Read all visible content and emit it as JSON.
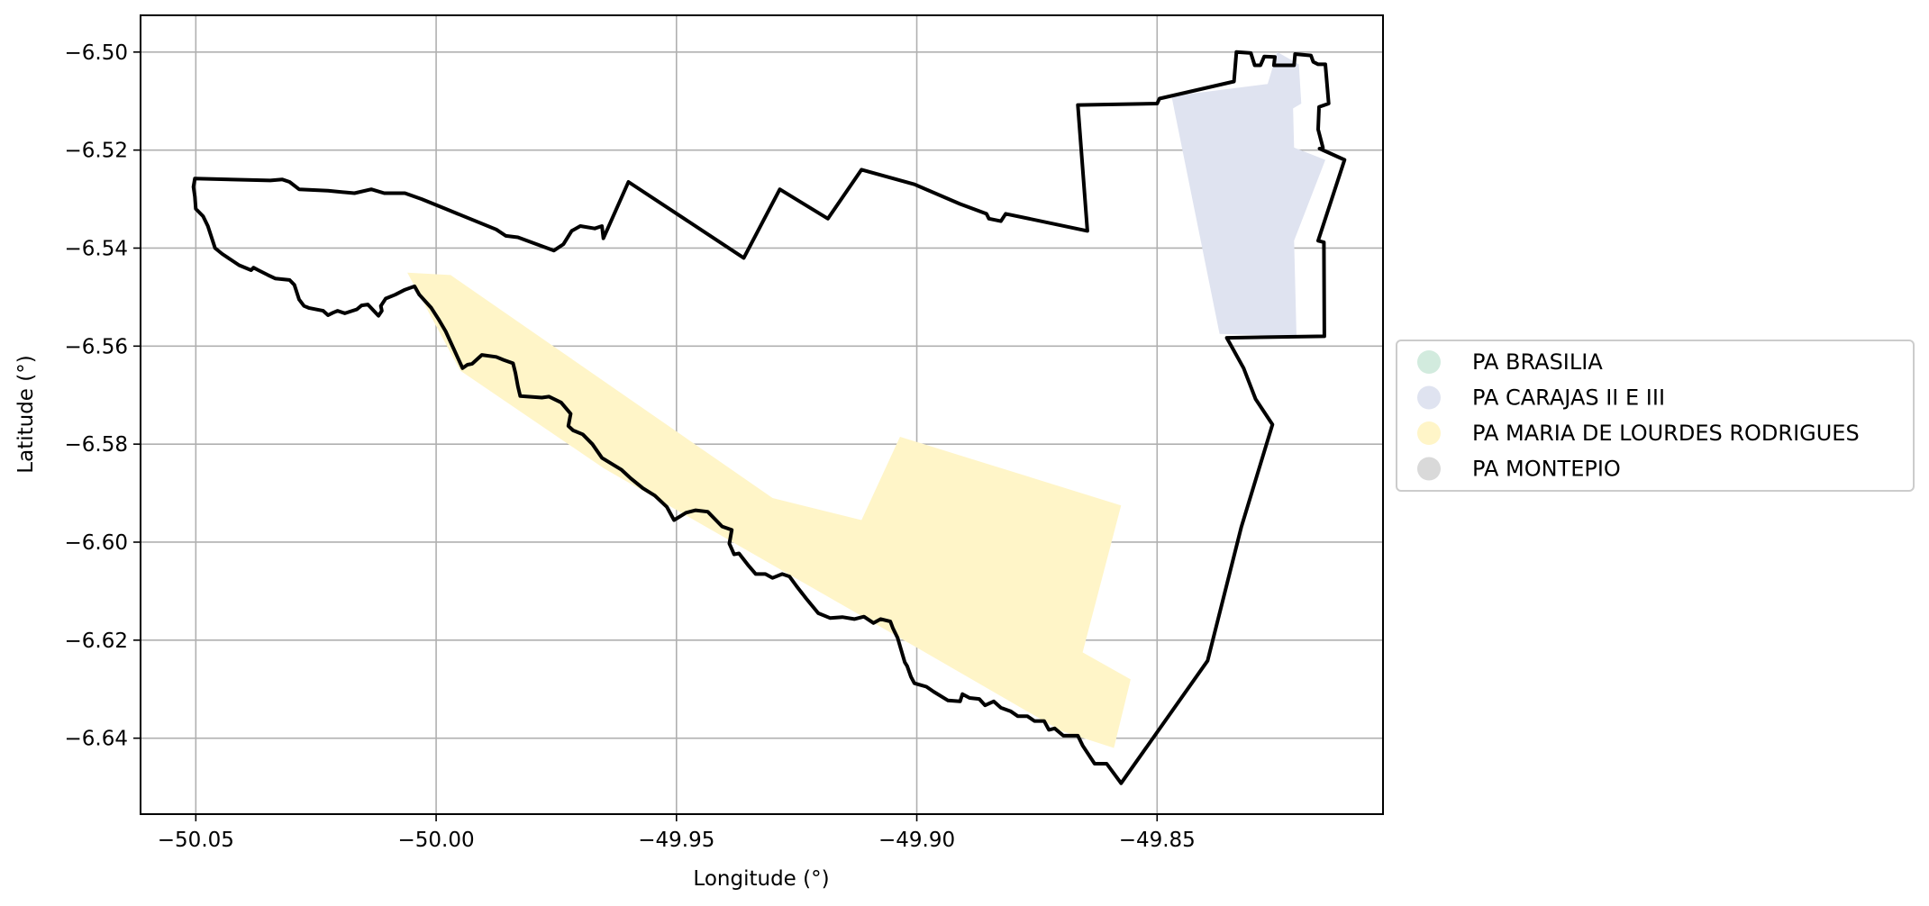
{
  "chart_data": {
    "type": "map",
    "xlabel": "Longitude (°)",
    "ylabel": "Latitude (°)",
    "xlim": [
      -50.0615,
      -49.803
    ],
    "ylim": [
      -6.6555,
      -6.4925
    ],
    "xticks": [
      -50.05,
      -50.0,
      -49.95,
      -49.9,
      -49.85
    ],
    "xtick_labels": [
      "−50.05",
      "−50.00",
      "−49.95",
      "−49.90",
      "−49.85"
    ],
    "yticks": [
      -6.5,
      -6.52,
      -6.54,
      -6.56,
      -6.58,
      -6.6,
      -6.62,
      -6.64
    ],
    "ytick_labels": [
      "−6.50",
      "−6.52",
      "−6.54",
      "−6.56",
      "−6.58",
      "−6.60",
      "−6.62",
      "−6.64"
    ],
    "grid": true,
    "legend_position": "right, outside plot",
    "legend": [
      {
        "label": "PA BRASILIA",
        "color": "#d2ebde"
      },
      {
        "label": "PA CARAJAS II E III",
        "color": "#dfe3f0"
      },
      {
        "label": "PA MARIA DE LOURDES RODRIGUES",
        "color": "#fff5c8"
      },
      {
        "label": "PA MONTEPIO",
        "color": "#d9d9d9"
      }
    ],
    "regions": [
      {
        "name": "PA CARAJAS II E III",
        "color": "#dfe3f0",
        "coords": [
          [
            -49.847,
            -6.509
          ],
          [
            -49.827,
            -6.5065
          ],
          [
            -49.825,
            -6.5
          ],
          [
            -49.8205,
            -6.5025
          ],
          [
            -49.82,
            -6.5105
          ],
          [
            -49.8217,
            -6.5115
          ],
          [
            -49.8215,
            -6.5195
          ],
          [
            -49.815,
            -6.522
          ],
          [
            -49.8215,
            -6.5385
          ],
          [
            -49.821,
            -6.558
          ],
          [
            -49.837,
            -6.5575
          ]
        ]
      },
      {
        "name": "PA MARIA DE LOURDES RODRIGUES",
        "color": "#fff5c8",
        "coords": [
          [
            -50.006,
            -6.545
          ],
          [
            -49.997,
            -6.5455
          ],
          [
            -49.93,
            -6.591
          ],
          [
            -49.9115,
            -6.5955
          ],
          [
            -49.9035,
            -6.5785
          ],
          [
            -49.8575,
            -6.5925
          ],
          [
            -49.8655,
            -6.6225
          ],
          [
            -49.8555,
            -6.628
          ],
          [
            -49.859,
            -6.642
          ],
          [
            -49.87,
            -6.6385
          ],
          [
            -49.9,
            -6.6215
          ],
          [
            -49.965,
            -6.585
          ],
          [
            -49.995,
            -6.565
          ]
        ]
      }
    ],
    "boundary": {
      "color": "#000000",
      "coords": [
        [
          -50.0502,
          -6.5258
        ],
        [
          -50.0345,
          -6.5262
        ],
        [
          -50.032,
          -6.526
        ],
        [
          -50.0305,
          -6.5265
        ],
        [
          -50.0285,
          -6.528
        ],
        [
          -50.0225,
          -6.5283
        ],
        [
          -50.017,
          -6.5288
        ],
        [
          -50.0135,
          -6.528
        ],
        [
          -50.0108,
          -6.5288
        ],
        [
          -50.0065,
          -6.5288
        ],
        [
          -50.003,
          -6.53
        ],
        [
          -49.9985,
          -6.5318
        ],
        [
          -49.9875,
          -6.5362
        ],
        [
          -49.9855,
          -6.5375
        ],
        [
          -49.983,
          -6.5378
        ],
        [
          -49.9755,
          -6.5405
        ],
        [
          -49.9735,
          -6.5392
        ],
        [
          -49.9718,
          -6.5365
        ],
        [
          -49.97,
          -6.5355
        ],
        [
          -49.967,
          -6.536
        ],
        [
          -49.9655,
          -6.5355
        ],
        [
          -49.9652,
          -6.538
        ],
        [
          -49.96,
          -6.5265
        ],
        [
          -49.936,
          -6.542
        ],
        [
          -49.9285,
          -6.528
        ],
        [
          -49.9185,
          -6.534
        ],
        [
          -49.9115,
          -6.524
        ],
        [
          -49.9005,
          -6.527
        ],
        [
          -49.891,
          -6.531
        ],
        [
          -49.8855,
          -6.533
        ],
        [
          -49.885,
          -6.534
        ],
        [
          -49.8825,
          -6.5345
        ],
        [
          -49.8815,
          -6.533
        ],
        [
          -49.8645,
          -6.5365
        ],
        [
          -49.8665,
          -6.5108
        ],
        [
          -49.85,
          -6.5105
        ],
        [
          -49.8495,
          -6.5095
        ],
        [
          -49.834,
          -6.506
        ],
        [
          -49.8335,
          -6.5
        ],
        [
          -49.8305,
          -6.5002
        ],
        [
          -49.8297,
          -6.5027
        ],
        [
          -49.8285,
          -6.5027
        ],
        [
          -49.8277,
          -6.5009
        ],
        [
          -49.8255,
          -6.501
        ],
        [
          -49.8257,
          -6.5027
        ],
        [
          -49.8215,
          -6.5027
        ],
        [
          -49.8213,
          -6.5004
        ],
        [
          -49.818,
          -6.5007
        ],
        [
          -49.8175,
          -6.502
        ],
        [
          -49.8165,
          -6.5025
        ],
        [
          -49.815,
          -6.5025
        ],
        [
          -49.8143,
          -6.5105
        ],
        [
          -49.8163,
          -6.5112
        ],
        [
          -49.8165,
          -6.5158
        ],
        [
          -49.8155,
          -6.5195
        ],
        [
          -49.8162,
          -6.5197
        ],
        [
          -49.811,
          -6.522
        ],
        [
          -49.8165,
          -6.5385
        ],
        [
          -49.8153,
          -6.5388
        ],
        [
          -49.8152,
          -6.558
        ],
        [
          -49.8355,
          -6.5583
        ],
        [
          -49.832,
          -6.5645
        ],
        [
          -49.8295,
          -6.5708
        ],
        [
          -49.826,
          -6.576
        ],
        [
          -49.8325,
          -6.597
        ],
        [
          -49.8395,
          -6.6242
        ],
        [
          -49.8575,
          -6.6492
        ],
        [
          -49.8605,
          -6.6452
        ],
        [
          -49.863,
          -6.6452
        ],
        [
          -49.8655,
          -6.6415
        ],
        [
          -49.8665,
          -6.6395
        ],
        [
          -49.8695,
          -6.6395
        ],
        [
          -49.8713,
          -6.638
        ],
        [
          -49.8725,
          -6.6383
        ],
        [
          -49.8735,
          -6.6365
        ],
        [
          -49.8755,
          -6.6365
        ],
        [
          -49.877,
          -6.6355
        ],
        [
          -49.879,
          -6.6355
        ],
        [
          -49.8805,
          -6.6345
        ],
        [
          -49.8825,
          -6.6338
        ],
        [
          -49.884,
          -6.6325
        ],
        [
          -49.8858,
          -6.6333
        ],
        [
          -49.887,
          -6.632
        ],
        [
          -49.889,
          -6.6318
        ],
        [
          -49.8905,
          -6.631
        ],
        [
          -49.891,
          -6.6325
        ],
        [
          -49.8935,
          -6.6323
        ],
        [
          -49.8965,
          -6.6305
        ],
        [
          -49.898,
          -6.6295
        ],
        [
          -49.9005,
          -6.6288
        ],
        [
          -49.9012,
          -6.6275
        ],
        [
          -49.902,
          -6.6253
        ],
        [
          -49.9025,
          -6.6245
        ],
        [
          -49.904,
          -6.6195
        ],
        [
          -49.905,
          -6.6175
        ],
        [
          -49.9055,
          -6.6162
        ],
        [
          -49.9075,
          -6.6157
        ],
        [
          -49.909,
          -6.6165
        ],
        [
          -49.911,
          -6.6152
        ],
        [
          -49.913,
          -6.6157
        ],
        [
          -49.9155,
          -6.6153
        ],
        [
          -49.918,
          -6.6155
        ],
        [
          -49.9205,
          -6.6145
        ],
        [
          -49.923,
          -6.6115
        ],
        [
          -49.925,
          -6.609
        ],
        [
          -49.9265,
          -6.607
        ],
        [
          -49.928,
          -6.6065
        ],
        [
          -49.93,
          -6.6073
        ],
        [
          -49.9315,
          -6.6065
        ],
        [
          -49.9335,
          -6.6065
        ],
        [
          -49.935,
          -6.6048
        ],
        [
          -49.937,
          -6.6023
        ],
        [
          -49.938,
          -6.6025
        ],
        [
          -49.939,
          -6.6003
        ],
        [
          -49.9385,
          -6.5975
        ],
        [
          -49.9405,
          -6.5968
        ],
        [
          -49.9435,
          -6.5938
        ],
        [
          -49.946,
          -6.5935
        ],
        [
          -49.948,
          -6.594
        ],
        [
          -49.9505,
          -6.5955
        ],
        [
          -49.952,
          -6.5928
        ],
        [
          -49.9545,
          -6.5905
        ],
        [
          -49.957,
          -6.589
        ],
        [
          -49.9595,
          -6.587
        ],
        [
          -49.9615,
          -6.5852
        ],
        [
          -49.9635,
          -6.584
        ],
        [
          -49.9655,
          -6.5828
        ],
        [
          -49.9675,
          -6.58
        ],
        [
          -49.9695,
          -6.578
        ],
        [
          -49.9715,
          -6.5772
        ],
        [
          -49.9725,
          -6.5763
        ],
        [
          -49.972,
          -6.5738
        ],
        [
          -49.974,
          -6.5715
        ],
        [
          -49.9765,
          -6.5703
        ],
        [
          -49.978,
          -6.5705
        ],
        [
          -49.9825,
          -6.5702
        ],
        [
          -49.983,
          -6.5682
        ],
        [
          -49.9835,
          -6.5655
        ],
        [
          -49.984,
          -6.5635
        ],
        [
          -49.986,
          -6.5628
        ],
        [
          -49.9875,
          -6.5622
        ],
        [
          -49.9905,
          -6.5618
        ],
        [
          -49.9925,
          -6.5636
        ],
        [
          -49.9935,
          -6.5638
        ],
        [
          -49.9945,
          -6.5645
        ],
        [
          -49.998,
          -6.557
        ],
        [
          -49.9995,
          -6.5545
        ],
        [
          -50.001,
          -6.5522
        ],
        [
          -50.0035,
          -6.5495
        ],
        [
          -50.0045,
          -6.5478
        ],
        [
          -50.0065,
          -6.5485
        ],
        [
          -50.0085,
          -6.5495
        ],
        [
          -50.0105,
          -6.5503
        ],
        [
          -50.0115,
          -6.5518
        ],
        [
          -50.0113,
          -6.5528
        ],
        [
          -50.012,
          -6.5538
        ],
        [
          -50.0142,
          -6.5515
        ],
        [
          -50.0155,
          -6.5517
        ],
        [
          -50.0165,
          -6.5525
        ],
        [
          -50.019,
          -6.5533
        ],
        [
          -50.0205,
          -6.5528
        ],
        [
          -50.0215,
          -6.5532
        ],
        [
          -50.0225,
          -6.5537
        ],
        [
          -50.0235,
          -6.5528
        ],
        [
          -50.0265,
          -6.5522
        ],
        [
          -50.0275,
          -6.5518
        ],
        [
          -50.0285,
          -6.5505
        ],
        [
          -50.0295,
          -6.5475
        ],
        [
          -50.0305,
          -6.5465
        ],
        [
          -50.0335,
          -6.5462
        ],
        [
          -50.035,
          -6.5455
        ],
        [
          -50.037,
          -6.5445
        ],
        [
          -50.038,
          -6.544
        ],
        [
          -50.0385,
          -6.5445
        ],
        [
          -50.041,
          -6.5435
        ],
        [
          -50.0445,
          -6.5412
        ],
        [
          -50.046,
          -6.54
        ],
        [
          -50.0475,
          -6.5355
        ],
        [
          -50.0485,
          -6.5335
        ],
        [
          -50.05,
          -6.532
        ],
        [
          -50.0502,
          -6.5295
        ],
        [
          -50.0505,
          -6.5275
        ]
      ]
    }
  }
}
